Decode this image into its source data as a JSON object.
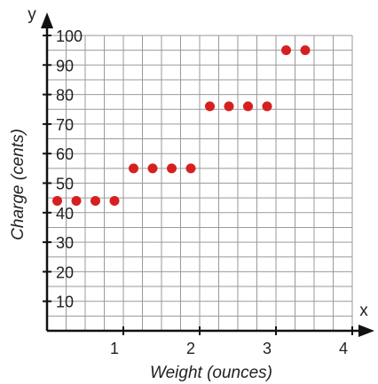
{
  "chart_data": {
    "type": "scatter",
    "title": "",
    "xlabel": "Weight (ounces)",
    "ylabel": "Charge (cents)",
    "x_axis_letter": "x",
    "y_axis_letter": "y",
    "xlim": [
      0,
      4
    ],
    "ylim": [
      0,
      100
    ],
    "x_ticks": [
      1,
      2,
      3,
      4
    ],
    "y_ticks": [
      10,
      20,
      30,
      40,
      50,
      60,
      70,
      80,
      90,
      100
    ],
    "grid": true,
    "grid_step_x": 0.25,
    "grid_step_y": 5,
    "marker_color": "#d62020",
    "series": [
      {
        "x": [
          0.25,
          0.5,
          0.75,
          1.0,
          1.25,
          1.5,
          1.75,
          2.0,
          2.25,
          2.5,
          2.75,
          3.0,
          3.25,
          3.5
        ],
        "y": [
          44,
          44,
          44,
          44,
          55,
          55,
          55,
          55,
          76,
          76,
          76,
          76,
          95,
          95
        ]
      }
    ]
  }
}
